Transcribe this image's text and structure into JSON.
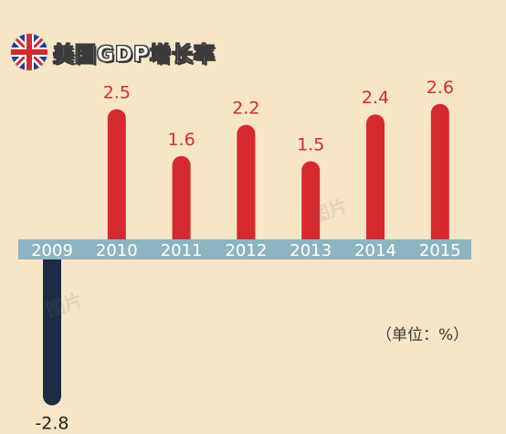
{
  "title": "美国GDP增长率",
  "unit_note": "（单位：%）",
  "colors": {
    "background": "#f6e6c6",
    "positive_bar": "#d42a2f",
    "negative_bar": "#1c2c43",
    "axis_band": "#8eb4c2",
    "positive_label": "#d42a2f",
    "negative_label": "#222222"
  },
  "icons": {
    "flag": "uk-flag-icon"
  },
  "chart_data": {
    "type": "bar",
    "title": "美国GDP增长率",
    "xlabel": "",
    "ylabel": "",
    "categories": [
      "2009",
      "2010",
      "2011",
      "2012",
      "2013",
      "2014",
      "2015"
    ],
    "values": [
      -2.8,
      2.5,
      1.6,
      2.2,
      1.5,
      2.4,
      2.6
    ],
    "value_labels": [
      "-2.8",
      "2.5",
      "1.6",
      "2.2",
      "1.5",
      "2.4",
      "2.6"
    ],
    "ylim": [
      -3.2,
      3.2
    ],
    "grid": false,
    "legend": "none"
  }
}
